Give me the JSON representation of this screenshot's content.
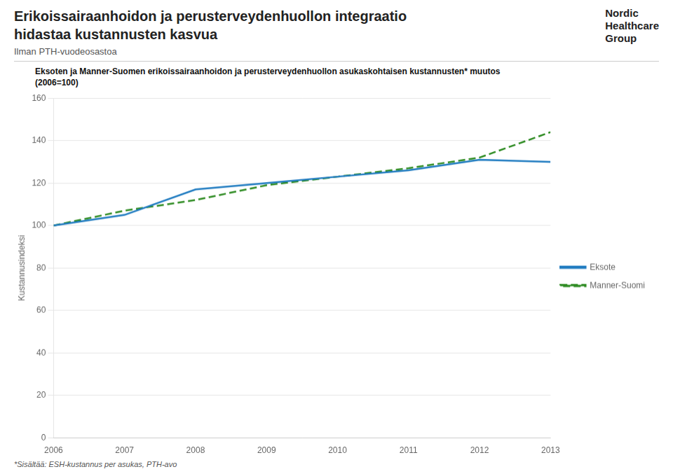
{
  "chart_data": {
    "type": "line",
    "title": [
      "Erikoissairaanhoidon ja perusterveydenhuollon integraatio",
      "hidastaa kustannusten kasvua"
    ],
    "subtitle": "Ilman PTH-vuodeosastoa",
    "annotations": [
      "Nordic",
      "Healthcare",
      "Group",
      "Eksoten ja Manner-Suomen erikoissairaanhoidon ja perusterveydenhuollon asukaskohtaisen kustannusten* muutos",
      "(2006=100)",
      "*Sisältää: ESH-kustannus per asukas, PTH-avo"
    ],
    "ylabel": "Kustannusindeksi",
    "x": [
      2006,
      2007,
      2008,
      2009,
      2010,
      2011,
      2012,
      2013
    ],
    "xlim": [
      2006,
      2013
    ],
    "xticks": [
      2006,
      2007,
      2008,
      2009,
      2010,
      2011,
      2012,
      2013
    ],
    "ylim": [
      0,
      160
    ],
    "yticks": [
      0,
      20,
      40,
      60,
      80,
      100,
      120,
      140,
      160
    ],
    "grid": true,
    "legend": "right",
    "series": [
      {
        "name": "Eksote",
        "color": "#1f7bc0",
        "line_style": "solid",
        "values": [
          100,
          105,
          117,
          120,
          123,
          126,
          131,
          130
        ]
      },
      {
        "name": "Manner-Suomi",
        "color": "#2e8b22",
        "line_style": "dashed",
        "values": [
          100,
          107,
          112,
          119,
          123,
          127,
          132,
          144
        ]
      }
    ]
  }
}
